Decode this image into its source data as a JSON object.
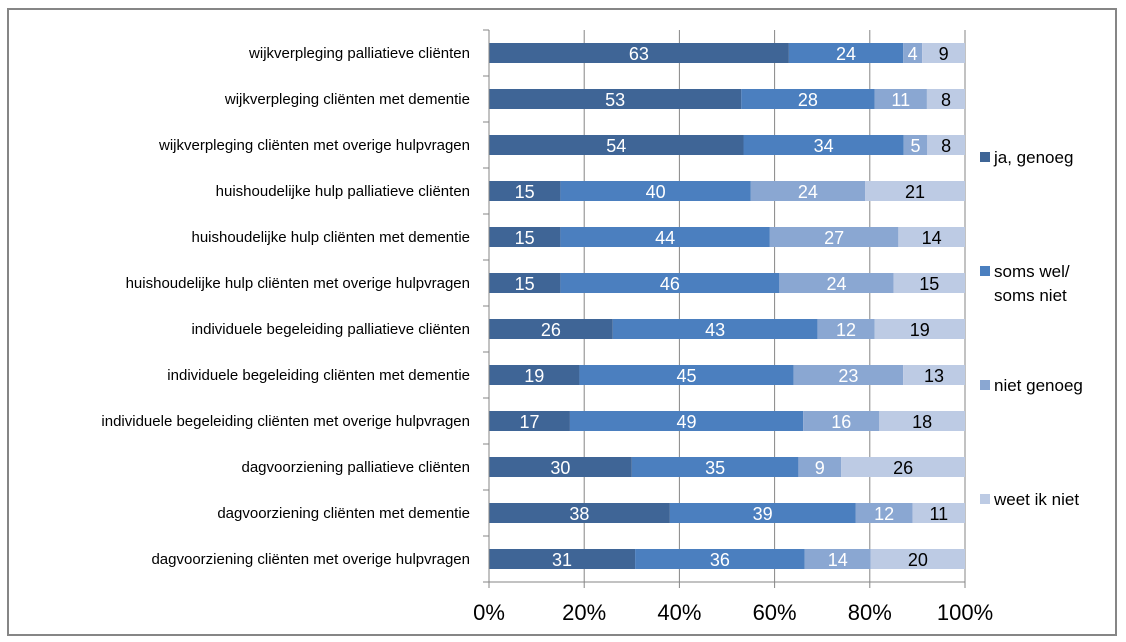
{
  "chart_data": {
    "type": "bar",
    "orientation": "horizontal",
    "stacked": true,
    "percent": true,
    "title": "",
    "xlabel": "",
    "ylabel": "",
    "xlim": [
      0,
      100
    ],
    "x_ticks": [
      "0%",
      "20%",
      "40%",
      "60%",
      "80%",
      "100%"
    ],
    "grid": "vertical major gridlines",
    "legend_position": "right",
    "categories": [
      "wijkverpleging palliatieve cliënten",
      "wijkverpleging cliënten met dementie",
      "wijkverpleging cliënten met overige hulpvragen",
      "huishoudelijke hulp palliatieve cliënten",
      "huishoudelijke hulp cliënten met dementie",
      "huishoudelijke hulp cliënten met overige hulpvragen",
      "individuele begeleiding palliatieve cliënten",
      "individuele begeleiding cliënten met dementie",
      "individuele begeleiding cliënten met overige hulpvragen",
      "dagvoorziening palliatieve cliënten",
      "dagvoorziening cliënten met dementie",
      "dagvoorziening cliënten met overige hulpvragen"
    ],
    "series": [
      {
        "name": "ja, genoeg",
        "color": "#3f6596",
        "label_color": "#ffffff",
        "values": [
          63,
          53,
          54,
          15,
          15,
          15,
          26,
          19,
          17,
          30,
          38,
          31
        ]
      },
      {
        "name": "soms wel/ soms niet",
        "legend_lines": [
          "soms wel/",
          "soms niet"
        ],
        "color": "#4b7fbf",
        "label_color": "#ffffff",
        "values": [
          24,
          28,
          34,
          40,
          44,
          46,
          43,
          45,
          49,
          35,
          39,
          36
        ]
      },
      {
        "name": "niet genoeg",
        "color": "#8aa7d2",
        "label_color": "#ffffff",
        "values": [
          4,
          11,
          5,
          24,
          27,
          24,
          12,
          23,
          16,
          9,
          12,
          14
        ]
      },
      {
        "name": "weet ik niet",
        "color": "#bdcbe4",
        "label_color": "#000000",
        "values": [
          9,
          8,
          8,
          21,
          14,
          15,
          19,
          13,
          18,
          26,
          11,
          20
        ]
      }
    ]
  }
}
